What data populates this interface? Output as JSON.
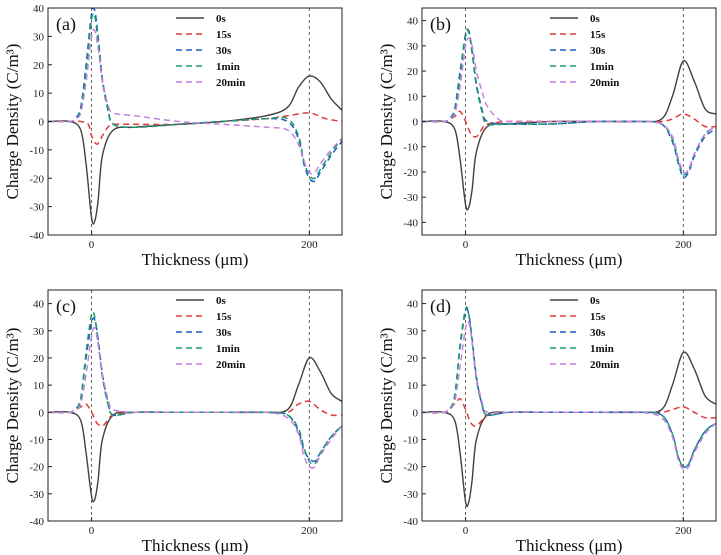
{
  "figure": {
    "description_style": "2x2 grid of line charts of charge density vs thickness"
  },
  "chart_data": [
    {
      "type": "line",
      "panel": "(a)",
      "xlabel": "Thickness (μm)",
      "ylabel": "Charge Density (C/m³)",
      "xlim": [
        -40,
        230
      ],
      "ylim": [
        -40,
        40
      ],
      "yticks": [
        -40,
        -30,
        -20,
        -10,
        0,
        10,
        20,
        30,
        40
      ],
      "xticks": [
        0,
        200
      ],
      "vlines": [
        0,
        200
      ],
      "legend_position": "top-center",
      "series": [
        {
          "name": "0s",
          "color": "#404040",
          "dash": "solid",
          "x": [
            -40,
            -20,
            -10,
            -5,
            0,
            3,
            6,
            10,
            20,
            40,
            80,
            120,
            160,
            180,
            190,
            200,
            210,
            220,
            230
          ],
          "y": [
            0,
            0,
            -3,
            -15,
            -34,
            -35,
            -28,
            -12,
            -3,
            -2,
            -1,
            0,
            2,
            5,
            12,
            16,
            14,
            8,
            4
          ]
        },
        {
          "name": "15s",
          "color": "#e03a3a",
          "dash": "dash",
          "x": [
            -40,
            -20,
            -10,
            -3,
            0,
            5,
            10,
            15,
            20,
            40,
            80,
            120,
            160,
            180,
            200,
            215,
            230
          ],
          "y": [
            0,
            0,
            0,
            -1,
            -5,
            -8,
            -5,
            -2,
            -1,
            -1,
            -1,
            0,
            1,
            2,
            3,
            1,
            0
          ]
        },
        {
          "name": "30s",
          "color": "#1f5fbf",
          "dash": "dash",
          "x": [
            -40,
            -20,
            -15,
            -10,
            -5,
            0,
            3,
            6,
            10,
            15,
            20,
            40,
            80,
            120,
            160,
            180,
            190,
            195,
            200,
            205,
            210,
            220,
            230
          ],
          "y": [
            0,
            0,
            1,
            5,
            20,
            38,
            39,
            30,
            15,
            5,
            -1,
            -2,
            -1,
            0,
            1,
            0,
            -6,
            -15,
            -20,
            -21,
            -18,
            -12,
            -7
          ]
        },
        {
          "name": "1min",
          "color": "#1a9a6e",
          "dash": "dash",
          "x": [
            -40,
            -20,
            -15,
            -10,
            -5,
            0,
            3,
            6,
            10,
            15,
            20,
            40,
            80,
            120,
            160,
            180,
            190,
            195,
            200,
            205,
            210,
            220,
            230
          ],
          "y": [
            0,
            0,
            1,
            4,
            18,
            36,
            37,
            28,
            14,
            4,
            -1,
            -2,
            -1,
            0,
            1,
            1,
            -5,
            -14,
            -19,
            -20,
            -17,
            -11,
            -6
          ]
        },
        {
          "name": "20min",
          "color": "#c77fe0",
          "dash": "dash",
          "x": [
            -40,
            -20,
            -15,
            -10,
            -5,
            0,
            3,
            6,
            10,
            15,
            20,
            40,
            80,
            120,
            160,
            180,
            190,
            195,
            200,
            205,
            210,
            220,
            230
          ],
          "y": [
            0,
            0,
            1,
            3,
            14,
            30,
            32,
            26,
            14,
            6,
            3,
            2,
            0,
            -1,
            -2,
            -3,
            -8,
            -14,
            -18,
            -18,
            -15,
            -10,
            -6
          ]
        }
      ]
    },
    {
      "type": "line",
      "panel": "(b)",
      "xlabel": "Thickness (μm)",
      "ylabel": "Charge Density (C/m³)",
      "xlim": [
        -40,
        230
      ],
      "ylim": [
        -45,
        45
      ],
      "yticks": [
        -40,
        -30,
        -20,
        -10,
        0,
        10,
        20,
        30,
        40
      ],
      "xticks": [
        0,
        200
      ],
      "vlines": [
        0,
        200
      ],
      "legend_position": "top-center",
      "series": [
        {
          "name": "0s",
          "color": "#404040",
          "dash": "solid",
          "x": [
            -40,
            -20,
            -10,
            -5,
            0,
            3,
            6,
            10,
            20,
            40,
            80,
            120,
            160,
            180,
            190,
            200,
            210,
            220,
            230
          ],
          "y": [
            0,
            0,
            -3,
            -15,
            -33,
            -34,
            -27,
            -12,
            -2,
            -1,
            0,
            0,
            0,
            1,
            10,
            24,
            16,
            5,
            3
          ]
        },
        {
          "name": "15s",
          "color": "#e03a3a",
          "dash": "dash",
          "x": [
            -40,
            -20,
            -10,
            -5,
            0,
            5,
            10,
            15,
            20,
            40,
            80,
            120,
            160,
            180,
            190,
            200,
            210,
            220,
            230
          ],
          "y": [
            0,
            0,
            2,
            4,
            0,
            -5,
            -6,
            -3,
            -1,
            0,
            0,
            0,
            0,
            0,
            1,
            3,
            1,
            -2,
            -2
          ]
        },
        {
          "name": "30s",
          "color": "#1f5fbf",
          "dash": "dash",
          "x": [
            -40,
            -20,
            -15,
            -10,
            -5,
            0,
            3,
            6,
            10,
            15,
            20,
            40,
            80,
            120,
            160,
            180,
            190,
            195,
            200,
            205,
            210,
            220,
            230
          ],
          "y": [
            0,
            0,
            1,
            5,
            20,
            34,
            36,
            28,
            15,
            5,
            0,
            -1,
            -1,
            0,
            0,
            -1,
            -8,
            -16,
            -22,
            -20,
            -14,
            -6,
            -3
          ]
        },
        {
          "name": "1min",
          "color": "#1a9a6e",
          "dash": "dash",
          "x": [
            -40,
            -20,
            -15,
            -10,
            -5,
            0,
            3,
            6,
            10,
            15,
            20,
            40,
            80,
            120,
            160,
            180,
            190,
            195,
            200,
            205,
            210,
            220,
            230
          ],
          "y": [
            0,
            0,
            1,
            4,
            18,
            35,
            35,
            27,
            14,
            4,
            -1,
            -1,
            -1,
            0,
            0,
            -1,
            -7,
            -15,
            -21,
            -19,
            -13,
            -5,
            -2
          ]
        },
        {
          "name": "20min",
          "color": "#c77fe0",
          "dash": "dash",
          "x": [
            -40,
            -20,
            -15,
            -10,
            -5,
            0,
            3,
            6,
            10,
            15,
            20,
            30,
            40,
            80,
            120,
            160,
            180,
            190,
            195,
            200,
            205,
            210,
            220,
            230
          ],
          "y": [
            0,
            0,
            1,
            3,
            14,
            30,
            33,
            30,
            20,
            12,
            6,
            1,
            0,
            0,
            0,
            0,
            -1,
            -6,
            -14,
            -20,
            -19,
            -13,
            -5,
            -2
          ]
        }
      ]
    },
    {
      "type": "line",
      "panel": "(c)",
      "xlabel": "Thickness (μm)",
      "ylabel": "Charge Density (C/m³)",
      "xlim": [
        -40,
        230
      ],
      "ylim": [
        -40,
        45
      ],
      "yticks": [
        -40,
        -30,
        -20,
        -10,
        0,
        10,
        20,
        30,
        40
      ],
      "xticks": [
        0,
        200
      ],
      "vlines": [
        0,
        200
      ],
      "legend_position": "top-center",
      "series": [
        {
          "name": "0s",
          "color": "#404040",
          "dash": "solid",
          "x": [
            -40,
            -20,
            -10,
            -5,
            0,
            3,
            6,
            10,
            20,
            40,
            80,
            120,
            160,
            180,
            190,
            200,
            210,
            220,
            230
          ],
          "y": [
            0,
            0,
            -3,
            -15,
            -31,
            -32,
            -25,
            -10,
            -1,
            0,
            0,
            0,
            0,
            1,
            10,
            20,
            15,
            7,
            4
          ]
        },
        {
          "name": "15s",
          "color": "#e03a3a",
          "dash": "dash",
          "x": [
            -40,
            -20,
            -10,
            -5,
            0,
            5,
            10,
            15,
            20,
            40,
            80,
            120,
            160,
            180,
            190,
            200,
            210,
            220,
            230
          ],
          "y": [
            0,
            0,
            2,
            3,
            0,
            -4,
            -5,
            -3,
            -1,
            0,
            0,
            0,
            0,
            0,
            3,
            4,
            1,
            -1,
            -1
          ]
        },
        {
          "name": "30s",
          "color": "#1f5fbf",
          "dash": "dash",
          "x": [
            -40,
            -20,
            -15,
            -10,
            -5,
            0,
            3,
            6,
            10,
            15,
            20,
            40,
            80,
            120,
            160,
            180,
            190,
            195,
            200,
            205,
            210,
            220,
            230
          ],
          "y": [
            0,
            0,
            1,
            5,
            20,
            33,
            34,
            27,
            14,
            4,
            -1,
            0,
            0,
            0,
            0,
            -1,
            -7,
            -14,
            -17,
            -18,
            -15,
            -9,
            -5
          ]
        },
        {
          "name": "1min",
          "color": "#1a9a6e",
          "dash": "dash",
          "x": [
            -40,
            -20,
            -15,
            -10,
            -5,
            0,
            3,
            6,
            10,
            15,
            20,
            40,
            80,
            120,
            160,
            180,
            190,
            195,
            200,
            205,
            210,
            220,
            230
          ],
          "y": [
            0,
            0,
            1,
            5,
            22,
            36,
            35,
            26,
            13,
            3,
            -1,
            0,
            0,
            0,
            0,
            -1,
            -6,
            -13,
            -18,
            -19,
            -15,
            -9,
            -5
          ]
        },
        {
          "name": "20min",
          "color": "#c77fe0",
          "dash": "dash",
          "x": [
            -40,
            -20,
            -15,
            -10,
            -5,
            0,
            3,
            6,
            10,
            15,
            20,
            40,
            80,
            120,
            160,
            180,
            190,
            195,
            200,
            205,
            210,
            220,
            230
          ],
          "y": [
            0,
            0,
            1,
            3,
            14,
            28,
            31,
            25,
            14,
            5,
            1,
            0,
            0,
            0,
            0,
            -2,
            -8,
            -16,
            -20,
            -20,
            -16,
            -10,
            -5
          ]
        }
      ]
    },
    {
      "type": "line",
      "panel": "(d)",
      "xlabel": "Thickness (μm)",
      "ylabel": "Charge Density (C/m³)",
      "xlim": [
        -40,
        230
      ],
      "ylim": [
        -40,
        45
      ],
      "yticks": [
        -40,
        -30,
        -20,
        -10,
        0,
        10,
        20,
        30,
        40
      ],
      "xticks": [
        0,
        200
      ],
      "vlines": [
        0,
        200
      ],
      "legend_position": "top-center",
      "series": [
        {
          "name": "0s",
          "color": "#404040",
          "dash": "solid",
          "x": [
            -40,
            -20,
            -10,
            -5,
            0,
            3,
            6,
            10,
            20,
            40,
            80,
            120,
            160,
            180,
            190,
            200,
            210,
            220,
            230
          ],
          "y": [
            0,
            0,
            -3,
            -15,
            -33,
            -33,
            -25,
            -10,
            -1,
            0,
            0,
            0,
            0,
            1,
            10,
            22,
            16,
            6,
            3
          ]
        },
        {
          "name": "15s",
          "color": "#e03a3a",
          "dash": "dash",
          "x": [
            -40,
            -20,
            -10,
            -5,
            0,
            5,
            10,
            15,
            20,
            40,
            80,
            120,
            160,
            180,
            190,
            200,
            210,
            220,
            230
          ],
          "y": [
            0,
            0,
            3,
            5,
            1,
            -4,
            -5,
            -3,
            -1,
            0,
            0,
            0,
            0,
            0,
            1,
            2,
            0,
            -2,
            -2
          ]
        },
        {
          "name": "30s",
          "color": "#1f5fbf",
          "dash": "dash",
          "x": [
            -40,
            -20,
            -15,
            -10,
            -5,
            0,
            3,
            6,
            10,
            15,
            20,
            40,
            80,
            120,
            160,
            180,
            190,
            195,
            200,
            205,
            210,
            220,
            230
          ],
          "y": [
            0,
            0,
            1,
            6,
            24,
            37,
            36,
            27,
            13,
            3,
            -1,
            0,
            0,
            0,
            0,
            -1,
            -8,
            -16,
            -20,
            -19,
            -14,
            -7,
            -4
          ]
        },
        {
          "name": "1min",
          "color": "#1a9a6e",
          "dash": "dash",
          "x": [
            -40,
            -20,
            -15,
            -10,
            -5,
            0,
            3,
            6,
            10,
            15,
            20,
            40,
            80,
            120,
            160,
            180,
            190,
            195,
            200,
            205,
            210,
            220,
            230
          ],
          "y": [
            0,
            0,
            1,
            6,
            25,
            38,
            36,
            26,
            12,
            3,
            -1,
            0,
            0,
            0,
            0,
            -1,
            -8,
            -16,
            -20,
            -19,
            -14,
            -7,
            -4
          ]
        },
        {
          "name": "20min",
          "color": "#c77fe0",
          "dash": "dash",
          "x": [
            -40,
            -20,
            -15,
            -10,
            -5,
            0,
            3,
            6,
            10,
            15,
            20,
            40,
            80,
            120,
            160,
            180,
            190,
            195,
            200,
            205,
            210,
            220,
            230
          ],
          "y": [
            0,
            0,
            1,
            4,
            17,
            31,
            33,
            26,
            13,
            4,
            0,
            0,
            0,
            0,
            0,
            -2,
            -9,
            -17,
            -21,
            -20,
            -15,
            -8,
            -4
          ]
        }
      ]
    }
  ]
}
